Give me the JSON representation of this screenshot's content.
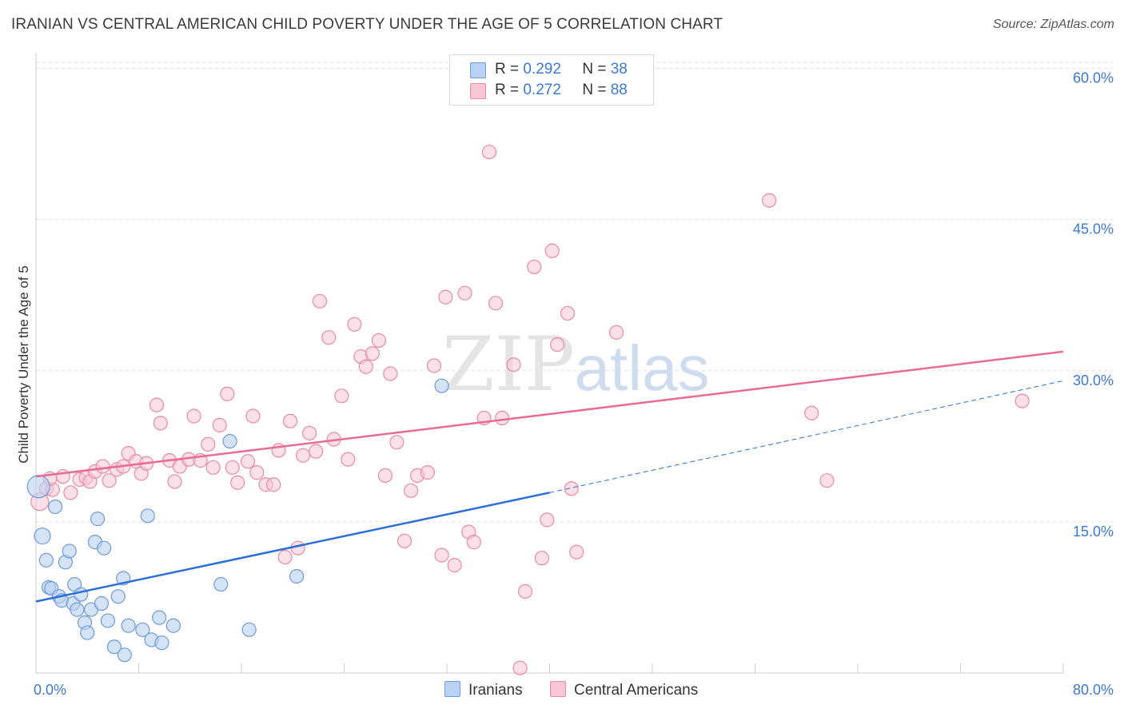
{
  "header": {
    "title": "IRANIAN VS CENTRAL AMERICAN CHILD POVERTY UNDER THE AGE OF 5 CORRELATION CHART",
    "source": "Source: ZipAtlas.com"
  },
  "legend": {
    "iranians": {
      "r_label": "R =",
      "r_value": "0.292",
      "n_label": "N =",
      "n_value": "38"
    },
    "central_americans": {
      "r_label": "R =",
      "r_value": "0.272",
      "n_label": "N =",
      "n_value": "88"
    }
  },
  "bottom_legend": {
    "iranians": "Iranians",
    "central_americans": "Central Americans"
  },
  "watermark": {
    "zip": "ZIP",
    "atlas": "atlas"
  },
  "colors": {
    "blue_fill": "#b9d1f2",
    "blue_stroke": "#6e9ad8",
    "blue_line": "#2b6fd6",
    "pink_fill": "#f8c6d5",
    "pink_stroke": "#e58aa8",
    "pink_line": "#e86b96",
    "tick_text": "#3b78d8",
    "grid": "#dddddd"
  },
  "chart_data": {
    "type": "scatter",
    "title": "IRANIAN VS CENTRAL AMERICAN CHILD POVERTY UNDER THE AGE OF 5 CORRELATION CHART",
    "xlabel": "",
    "ylabel": "Child Poverty Under the Age of 5",
    "xlim": [
      0,
      80
    ],
    "ylim": [
      0,
      60
    ],
    "x_tick_labels": [
      "0.0%",
      "80.0%"
    ],
    "y_ticks": [
      15,
      30,
      45,
      60
    ],
    "y_tick_labels": [
      "15.0%",
      "30.0%",
      "45.0%",
      "60.0%"
    ],
    "grid": true,
    "legend_position": "top-center",
    "series": [
      {
        "name": "Iranians",
        "color": "#b9d1f2",
        "trend": {
          "x0": 0,
          "y0": 7.1,
          "x1": 40,
          "y1": 17.9,
          "dash_to_x": 80,
          "dash_to_y": 29.0
        },
        "points": [
          [
            0.2,
            18.5
          ],
          [
            0.5,
            13.6
          ],
          [
            0.8,
            11.2
          ],
          [
            1.0,
            8.5
          ],
          [
            1.2,
            8.4
          ],
          [
            1.5,
            16.5
          ],
          [
            1.8,
            7.6
          ],
          [
            2.0,
            7.2
          ],
          [
            2.3,
            11.0
          ],
          [
            2.6,
            12.1
          ],
          [
            2.9,
            6.9
          ],
          [
            3.0,
            8.8
          ],
          [
            3.2,
            6.3
          ],
          [
            3.5,
            7.8
          ],
          [
            3.8,
            5.0
          ],
          [
            4.0,
            4.0
          ],
          [
            4.3,
            6.3
          ],
          [
            4.6,
            13.0
          ],
          [
            4.8,
            15.3
          ],
          [
            5.1,
            6.9
          ],
          [
            5.3,
            12.4
          ],
          [
            5.6,
            5.2
          ],
          [
            6.1,
            2.6
          ],
          [
            6.4,
            7.6
          ],
          [
            6.8,
            9.4
          ],
          [
            6.9,
            1.8
          ],
          [
            7.2,
            4.7
          ],
          [
            8.3,
            4.3
          ],
          [
            8.7,
            15.6
          ],
          [
            9.0,
            3.3
          ],
          [
            9.6,
            5.5
          ],
          [
            9.8,
            3.0
          ],
          [
            10.7,
            4.7
          ],
          [
            14.4,
            8.8
          ],
          [
            15.1,
            23.0
          ],
          [
            16.6,
            4.3
          ],
          [
            20.3,
            9.6
          ],
          [
            31.6,
            28.5
          ]
        ]
      },
      {
        "name": "Central Americans",
        "color": "#f8c6d5",
        "trend": {
          "x0": 0,
          "y0": 19.5,
          "x1": 80,
          "y1": 31.9
        },
        "points": [
          [
            0.3,
            17.0
          ],
          [
            0.8,
            18.3
          ],
          [
            1.3,
            18.2
          ],
          [
            2.1,
            19.5
          ],
          [
            2.7,
            17.9
          ],
          [
            3.4,
            19.2
          ],
          [
            3.9,
            19.4
          ],
          [
            4.2,
            19.0
          ],
          [
            4.6,
            20.0
          ],
          [
            5.2,
            20.5
          ],
          [
            5.7,
            19.1
          ],
          [
            6.3,
            20.2
          ],
          [
            6.8,
            20.5
          ],
          [
            7.2,
            21.8
          ],
          [
            7.8,
            21.0
          ],
          [
            8.2,
            19.8
          ],
          [
            8.6,
            20.8
          ],
          [
            9.4,
            26.6
          ],
          [
            9.7,
            24.8
          ],
          [
            10.4,
            21.1
          ],
          [
            10.8,
            19.0
          ],
          [
            11.2,
            20.5
          ],
          [
            11.9,
            21.2
          ],
          [
            12.3,
            25.5
          ],
          [
            12.8,
            21.1
          ],
          [
            13.4,
            22.7
          ],
          [
            13.8,
            20.4
          ],
          [
            14.3,
            24.6
          ],
          [
            14.9,
            27.7
          ],
          [
            15.3,
            20.4
          ],
          [
            15.7,
            18.9
          ],
          [
            16.5,
            21.0
          ],
          [
            16.9,
            25.5
          ],
          [
            17.2,
            19.9
          ],
          [
            17.9,
            18.7
          ],
          [
            18.5,
            18.7
          ],
          [
            18.9,
            22.1
          ],
          [
            19.4,
            11.5
          ],
          [
            19.8,
            25.0
          ],
          [
            20.4,
            12.4
          ],
          [
            20.8,
            21.6
          ],
          [
            21.3,
            23.8
          ],
          [
            21.8,
            22.0
          ],
          [
            22.1,
            36.9
          ],
          [
            22.8,
            33.3
          ],
          [
            23.2,
            23.2
          ],
          [
            23.8,
            27.5
          ],
          [
            24.3,
            21.2
          ],
          [
            24.8,
            34.6
          ],
          [
            25.3,
            31.4
          ],
          [
            25.7,
            30.4
          ],
          [
            26.2,
            31.7
          ],
          [
            26.7,
            33.0
          ],
          [
            27.2,
            19.6
          ],
          [
            27.6,
            29.7
          ],
          [
            28.1,
            22.9
          ],
          [
            28.7,
            13.1
          ],
          [
            29.2,
            18.1
          ],
          [
            29.7,
            19.6
          ],
          [
            30.5,
            19.9
          ],
          [
            31.0,
            30.5
          ],
          [
            31.6,
            11.7
          ],
          [
            31.9,
            37.3
          ],
          [
            32.6,
            10.7
          ],
          [
            33.4,
            37.7
          ],
          [
            33.7,
            14.0
          ],
          [
            34.1,
            13.0
          ],
          [
            34.9,
            25.3
          ],
          [
            35.3,
            51.7
          ],
          [
            35.8,
            36.7
          ],
          [
            36.3,
            25.3
          ],
          [
            37.2,
            30.6
          ],
          [
            37.7,
            0.5
          ],
          [
            38.1,
            8.1
          ],
          [
            38.8,
            40.3
          ],
          [
            39.4,
            11.4
          ],
          [
            39.8,
            15.2
          ],
          [
            40.2,
            41.9
          ],
          [
            40.6,
            32.6
          ],
          [
            41.4,
            35.7
          ],
          [
            41.7,
            18.3
          ],
          [
            42.1,
            12.0
          ],
          [
            45.2,
            33.8
          ],
          [
            57.1,
            46.9
          ],
          [
            60.4,
            25.8
          ],
          [
            61.6,
            19.1
          ],
          [
            76.8,
            27.0
          ],
          [
            1.1,
            19.3
          ]
        ]
      }
    ]
  }
}
